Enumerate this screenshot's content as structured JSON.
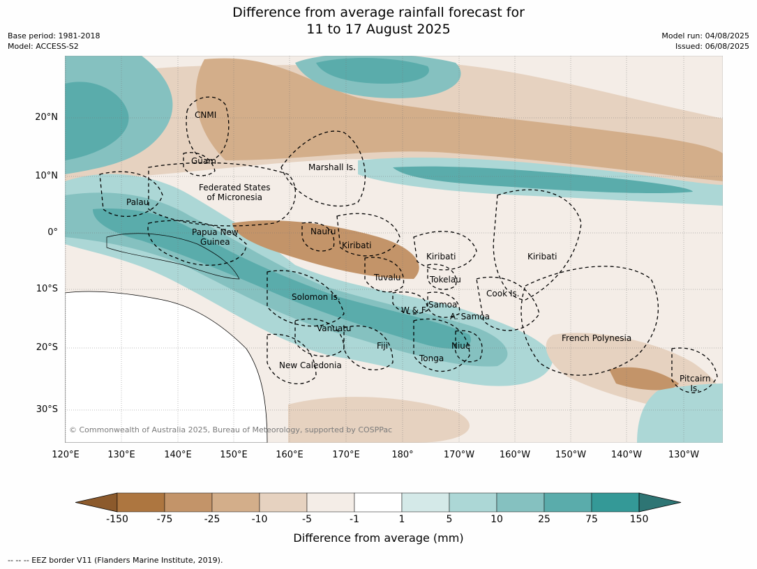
{
  "title_line1": "Difference from average rainfall forecast for",
  "title_line2": "11 to 17 August 2025",
  "base_period": "Base period: 1981-2018",
  "model": "Model: ACCESS-S2",
  "model_run": "Model run: 04/08/2025",
  "issued": "Issued: 06/08/2025",
  "lat_labels": [
    "20°N",
    "10°N",
    "0°",
    "10°S",
    "20°S",
    "30°S"
  ],
  "lon_labels": [
    "120°E",
    "130°E",
    "140°E",
    "150°E",
    "160°E",
    "170°E",
    "180°",
    "170°W",
    "160°W",
    "150°W",
    "140°W",
    "130°W"
  ],
  "regions": {
    "cnmi": "CNMI",
    "guam": "Guam",
    "marshall": "Marshall Is.",
    "fsm_1": "Federated States",
    "fsm_2": "of Micronesia",
    "palau": "Palau",
    "png_1": "Papua New",
    "png_2": "Guinea",
    "nauru": "Nauru",
    "kiribati_w": "Kiribati",
    "kiribati_c": "Kiribati",
    "kiribati_e": "Kiribati",
    "tuvalu": "Tuvalu",
    "tokelau": "Tokelau",
    "cook": "Cook Is.",
    "solomon": "Solomon Is.",
    "samoa": "Samoa",
    "wf": "W & F",
    "asamoa": "A. Samoa",
    "vanuatu": "Vanuatu",
    "fiji": "Fiji",
    "niue": "Niue",
    "tonga": "Tonga",
    "frpoly": "French Polynesia",
    "pitcairn_1": "Pitcairn",
    "pitcairn_2": "Is.",
    "newcal": "New Caledonia"
  },
  "copyright": "© Commonwealth of Australia 2025, Bureau of Meteorology, supported by COSPPac",
  "colorbar": {
    "ticks": [
      "-150",
      "-75",
      "-25",
      "-10",
      "-5",
      "-1",
      "1",
      "5",
      "10",
      "25",
      "75",
      "150"
    ],
    "colors": [
      "#8c5a2c",
      "#ad7640",
      "#c39469",
      "#d3ae8a",
      "#e6d2c0",
      "#f4ede7",
      "#ffffff",
      "#d4e9e8",
      "#acd7d6",
      "#85c1c0",
      "#5aacab",
      "#349997",
      "#2e7574"
    ],
    "title": "Difference from average (mm)"
  },
  "footnote": "--  --  -- EEZ border V11 (Flanders Marine Institute, 2019)."
}
